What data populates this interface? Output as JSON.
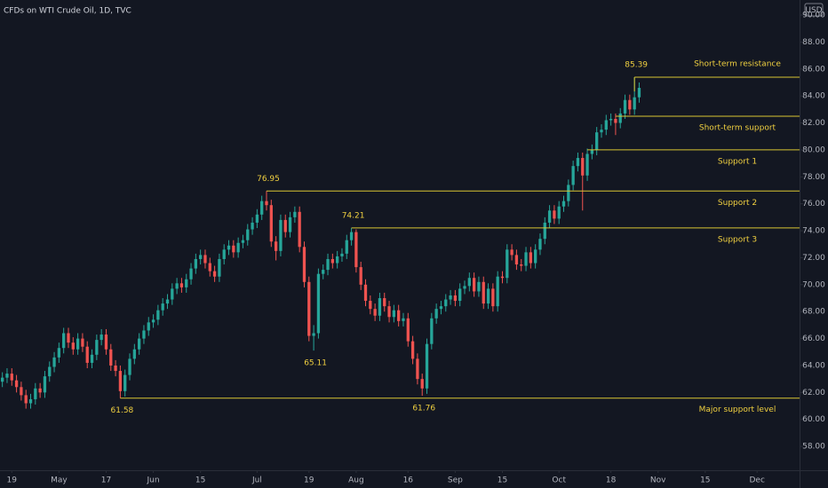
{
  "chart_data": {
    "type": "candlestick",
    "title": "CFDs on WTI Crude Oil, 1D, TVC",
    "currency": "USD",
    "up_color": "#26a69a",
    "down_color": "#ef5350",
    "level_color": "#d9c632",
    "xlim": [
      -0.5,
      169
    ],
    "ylim": [
      56.23,
      91.12
    ],
    "xticks": [
      {
        "value": 2,
        "label": "19"
      },
      {
        "value": 12,
        "label": "May"
      },
      {
        "value": 22,
        "label": "17"
      },
      {
        "value": 32,
        "label": "Jun"
      },
      {
        "value": 42,
        "label": "15"
      },
      {
        "value": 54,
        "label": "Jul"
      },
      {
        "value": 65,
        "label": "19"
      },
      {
        "value": 75,
        "label": "Aug"
      },
      {
        "value": 86,
        "label": "16"
      },
      {
        "value": 96,
        "label": "Sep"
      },
      {
        "value": 106,
        "label": "15"
      },
      {
        "value": 118,
        "label": "Oct"
      },
      {
        "value": 129,
        "label": "18"
      },
      {
        "value": 139,
        "label": "Nov"
      },
      {
        "value": 149,
        "label": "15"
      },
      {
        "value": 160,
        "label": "Dec"
      }
    ],
    "yticks": [
      {
        "value": 58,
        "label": "58.00"
      },
      {
        "value": 60,
        "label": "60.00"
      },
      {
        "value": 62,
        "label": "62.00"
      },
      {
        "value": 64,
        "label": "64.00"
      },
      {
        "value": 66,
        "label": "66.00"
      },
      {
        "value": 68,
        "label": "68.00"
      },
      {
        "value": 70,
        "label": "70.00"
      },
      {
        "value": 72,
        "label": "72.00"
      },
      {
        "value": 74,
        "label": "74.00"
      },
      {
        "value": 76,
        "label": "76.00"
      },
      {
        "value": 78,
        "label": "78.00"
      },
      {
        "value": 80,
        "label": "80.00"
      },
      {
        "value": 82,
        "label": "82.00"
      },
      {
        "value": 84,
        "label": "84.00"
      },
      {
        "value": 86,
        "label": "86.00"
      },
      {
        "value": 88,
        "label": "88.00"
      },
      {
        "value": 90,
        "label": "90.00"
      }
    ],
    "candles": [
      [
        62.8,
        63.5,
        62.4,
        63.1
      ],
      [
        63.1,
        63.8,
        62.7,
        63.4
      ],
      [
        63.4,
        63.8,
        62.5,
        62.9
      ],
      [
        62.9,
        63.3,
        62.0,
        62.4
      ],
      [
        62.4,
        62.8,
        61.4,
        61.8
      ],
      [
        61.8,
        62.2,
        60.8,
        61.2
      ],
      [
        61.2,
        61.9,
        60.8,
        61.5
      ],
      [
        61.5,
        62.7,
        61.1,
        62.3
      ],
      [
        62.3,
        62.7,
        61.6,
        62.0
      ],
      [
        62.0,
        63.6,
        61.6,
        63.2
      ],
      [
        63.2,
        64.3,
        62.8,
        63.9
      ],
      [
        63.9,
        65.0,
        63.5,
        64.6
      ],
      [
        64.6,
        65.7,
        64.2,
        65.3
      ],
      [
        65.3,
        66.8,
        64.9,
        66.4
      ],
      [
        66.4,
        66.8,
        65.3,
        65.7
      ],
      [
        65.7,
        66.1,
        64.8,
        65.2
      ],
      [
        65.2,
        66.4,
        64.8,
        66.0
      ],
      [
        66.0,
        66.4,
        65.0,
        65.4
      ],
      [
        65.4,
        65.8,
        63.8,
        64.2
      ],
      [
        64.2,
        65.2,
        63.8,
        64.8
      ],
      [
        64.8,
        66.3,
        64.4,
        65.9
      ],
      [
        65.9,
        66.7,
        65.5,
        66.3
      ],
      [
        66.3,
        66.7,
        64.8,
        65.2
      ],
      [
        65.2,
        65.6,
        63.6,
        64.0
      ],
      [
        64.0,
        64.4,
        63.2,
        63.6
      ],
      [
        63.6,
        64.0,
        61.58,
        62.1
      ],
      [
        62.1,
        63.7,
        61.7,
        63.3
      ],
      [
        63.3,
        64.9,
        62.9,
        64.5
      ],
      [
        64.5,
        65.6,
        64.1,
        65.2
      ],
      [
        65.2,
        66.4,
        64.8,
        66.0
      ],
      [
        66.0,
        67.0,
        65.6,
        66.6
      ],
      [
        66.6,
        67.6,
        66.2,
        67.2
      ],
      [
        67.2,
        67.8,
        66.8,
        67.4
      ],
      [
        67.4,
        68.5,
        67.0,
        68.1
      ],
      [
        68.1,
        69.0,
        67.7,
        68.6
      ],
      [
        68.6,
        69.3,
        68.2,
        68.9
      ],
      [
        68.9,
        70.1,
        68.5,
        69.7
      ],
      [
        69.7,
        70.5,
        69.3,
        70.1
      ],
      [
        70.1,
        70.5,
        69.4,
        69.8
      ],
      [
        69.8,
        70.8,
        69.4,
        70.4
      ],
      [
        70.4,
        71.6,
        70.0,
        71.2
      ],
      [
        71.2,
        72.3,
        70.8,
        71.9
      ],
      [
        71.9,
        72.6,
        71.5,
        72.2
      ],
      [
        72.2,
        72.6,
        71.2,
        71.6
      ],
      [
        71.6,
        72.0,
        70.6,
        71.0
      ],
      [
        71.0,
        71.4,
        70.2,
        70.6
      ],
      [
        70.6,
        72.3,
        70.2,
        71.9
      ],
      [
        71.9,
        73.0,
        71.5,
        72.6
      ],
      [
        72.6,
        73.3,
        72.2,
        72.9
      ],
      [
        72.9,
        73.3,
        72.0,
        72.4
      ],
      [
        72.4,
        73.5,
        72.0,
        73.1
      ],
      [
        73.1,
        73.7,
        72.7,
        73.3
      ],
      [
        73.3,
        74.5,
        72.9,
        74.1
      ],
      [
        74.1,
        75.0,
        73.7,
        74.6
      ],
      [
        74.6,
        75.6,
        74.2,
        75.2
      ],
      [
        75.2,
        76.6,
        74.8,
        76.2
      ],
      [
        76.2,
        76.95,
        75.5,
        75.9
      ],
      [
        75.9,
        76.3,
        72.8,
        73.2
      ],
      [
        73.2,
        73.6,
        71.8,
        72.5
      ],
      [
        72.5,
        75.2,
        72.1,
        74.8
      ],
      [
        74.8,
        75.2,
        73.5,
        73.9
      ],
      [
        73.9,
        75.4,
        73.5,
        75.0
      ],
      [
        75.0,
        75.8,
        74.6,
        75.4
      ],
      [
        75.4,
        75.8,
        72.4,
        72.8
      ],
      [
        72.8,
        73.2,
        69.8,
        70.2
      ],
      [
        70.2,
        70.6,
        65.8,
        66.2
      ],
      [
        66.2,
        67.0,
        65.11,
        66.4
      ],
      [
        66.4,
        71.2,
        66.0,
        70.8
      ],
      [
        70.8,
        71.5,
        70.4,
        71.1
      ],
      [
        71.1,
        72.3,
        70.7,
        71.9
      ],
      [
        71.9,
        72.3,
        71.2,
        71.6
      ],
      [
        71.6,
        72.5,
        71.2,
        72.1
      ],
      [
        72.1,
        72.7,
        71.7,
        72.3
      ],
      [
        72.3,
        73.7,
        71.9,
        73.3
      ],
      [
        73.3,
        74.21,
        72.9,
        73.9
      ],
      [
        73.9,
        74.1,
        70.9,
        71.3
      ],
      [
        71.3,
        71.7,
        69.6,
        70.0
      ],
      [
        70.0,
        70.4,
        68.4,
        68.8
      ],
      [
        68.8,
        69.2,
        67.8,
        68.2
      ],
      [
        68.2,
        68.6,
        67.3,
        67.7
      ],
      [
        67.7,
        69.4,
        67.3,
        69.0
      ],
      [
        69.0,
        69.4,
        68.0,
        68.4
      ],
      [
        68.4,
        68.8,
        67.2,
        67.6
      ],
      [
        67.6,
        68.5,
        67.2,
        68.1
      ],
      [
        68.1,
        68.5,
        66.9,
        67.3
      ],
      [
        67.3,
        67.9,
        66.9,
        67.5
      ],
      [
        67.5,
        67.9,
        65.4,
        65.8
      ],
      [
        65.8,
        66.2,
        64.1,
        64.5
      ],
      [
        64.5,
        64.9,
        62.6,
        63.0
      ],
      [
        63.0,
        63.4,
        61.76,
        62.3
      ],
      [
        62.3,
        66.0,
        61.9,
        65.6
      ],
      [
        65.6,
        67.9,
        65.2,
        67.5
      ],
      [
        67.5,
        68.6,
        67.1,
        68.2
      ],
      [
        68.2,
        68.8,
        67.8,
        68.4
      ],
      [
        68.4,
        69.3,
        68.0,
        68.9
      ],
      [
        68.9,
        69.6,
        68.5,
        69.2
      ],
      [
        69.2,
        69.6,
        68.4,
        68.8
      ],
      [
        68.8,
        70.1,
        68.4,
        69.7
      ],
      [
        69.7,
        70.3,
        69.3,
        69.9
      ],
      [
        69.9,
        70.9,
        69.5,
        70.5
      ],
      [
        70.5,
        70.9,
        69.1,
        69.5
      ],
      [
        69.5,
        70.6,
        69.1,
        70.2
      ],
      [
        70.2,
        70.6,
        68.2,
        68.6
      ],
      [
        68.6,
        70.1,
        68.2,
        69.7
      ],
      [
        69.7,
        70.1,
        68.0,
        68.4
      ],
      [
        68.4,
        71.0,
        68.0,
        70.6
      ],
      [
        70.6,
        71.0,
        70.1,
        70.5
      ],
      [
        70.5,
        73.0,
        70.1,
        72.6
      ],
      [
        72.6,
        73.0,
        71.8,
        72.2
      ],
      [
        72.2,
        72.6,
        71.1,
        71.5
      ],
      [
        71.5,
        71.9,
        71.0,
        71.4
      ],
      [
        71.4,
        72.8,
        71.0,
        72.4
      ],
      [
        72.4,
        72.8,
        71.2,
        71.6
      ],
      [
        71.6,
        73.0,
        71.2,
        72.6
      ],
      [
        72.6,
        73.8,
        72.2,
        73.4
      ],
      [
        73.4,
        75.0,
        73.0,
        74.6
      ],
      [
        74.6,
        75.9,
        74.2,
        75.5
      ],
      [
        75.5,
        75.9,
        74.5,
        74.9
      ],
      [
        74.9,
        76.2,
        74.5,
        75.8
      ],
      [
        75.8,
        76.6,
        75.4,
        76.2
      ],
      [
        76.2,
        77.8,
        75.8,
        77.4
      ],
      [
        77.4,
        79.2,
        77.0,
        78.8
      ],
      [
        78.8,
        79.8,
        78.4,
        79.4
      ],
      [
        79.4,
        79.8,
        75.5,
        78.1
      ],
      [
        78.1,
        80.1,
        77.7,
        79.7
      ],
      [
        79.7,
        80.4,
        79.3,
        80.0
      ],
      [
        80.0,
        81.7,
        79.6,
        81.3
      ],
      [
        81.3,
        81.9,
        80.9,
        81.5
      ],
      [
        81.5,
        82.6,
        81.1,
        82.2
      ],
      [
        82.2,
        82.7,
        81.8,
        82.3
      ],
      [
        82.3,
        82.7,
        81.1,
        82.0
      ],
      [
        82.0,
        83.1,
        81.6,
        82.7
      ],
      [
        82.7,
        84.1,
        82.3,
        83.7
      ],
      [
        83.7,
        84.1,
        82.6,
        83.0
      ],
      [
        83.0,
        85.39,
        82.6,
        83.9
      ],
      [
        83.9,
        85.0,
        83.5,
        84.6
      ]
    ],
    "levels": [
      {
        "label": "Short-term resistance",
        "value": 85.39,
        "from": 134,
        "side": "above"
      },
      {
        "label": "Short-term support",
        "value": 82.5,
        "from": 130,
        "side": "below"
      },
      {
        "label": "Support 1",
        "value": 80.0,
        "from": 124,
        "side": "below"
      },
      {
        "label": "Support 2",
        "value": 76.95,
        "from": 56,
        "side": "below"
      },
      {
        "label": "Support 3",
        "value": 74.21,
        "from": 74,
        "side": "below"
      },
      {
        "label": "Major support level",
        "value": 61.58,
        "from": 25,
        "side": "below"
      }
    ],
    "price_labels": [
      {
        "value": 85.39,
        "at": 134,
        "side": "above"
      },
      {
        "value": 76.95,
        "at": 56,
        "side": "above"
      },
      {
        "value": 74.21,
        "at": 74,
        "side": "above"
      },
      {
        "value": 65.11,
        "at": 66,
        "side": "below"
      },
      {
        "value": 61.58,
        "at": 25,
        "side": "below"
      },
      {
        "value": 61.76,
        "at": 89,
        "side": "below"
      }
    ]
  }
}
